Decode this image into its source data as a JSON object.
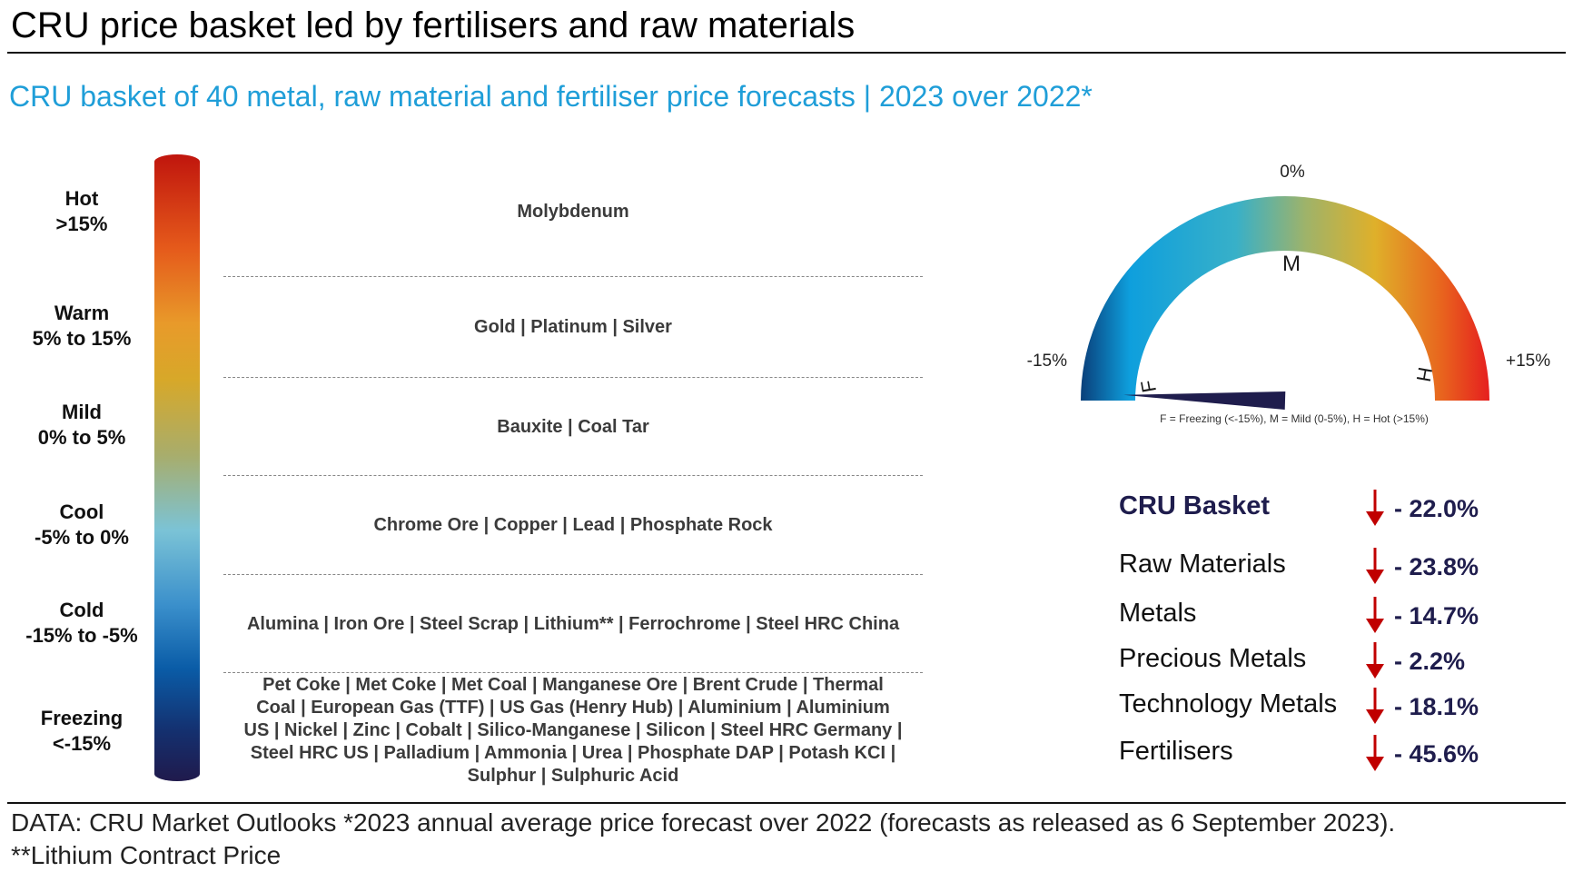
{
  "header": {
    "title": "CRU price basket led by fertilisers and raw materials",
    "subtitle": "CRU basket of 40 metal, raw material and fertiliser price forecasts | 2023 over 2022*"
  },
  "scale": {
    "bands": [
      {
        "name": "Hot",
        "range": ">15%"
      },
      {
        "name": "Warm",
        "range": "5% to 15%"
      },
      {
        "name": "Mild",
        "range": "0% to 5%"
      },
      {
        "name": "Cool",
        "range": "-5% to 0%"
      },
      {
        "name": "Cold",
        "range": "-15% to -5%"
      },
      {
        "name": "Freezing",
        "range": "<-15%"
      }
    ]
  },
  "commodities": {
    "hot": "Molybdenum",
    "warm": "Gold | Platinum | Silver",
    "mild": "Bauxite | Coal Tar",
    "cool": "Chrome Ore | Copper | Lead | Phosphate Rock",
    "cold": "Alumina | Iron Ore | Steel Scrap | Lithium** | Ferrochrome | Steel HRC China",
    "freezing_lines": [
      "Pet Coke | Met Coke | Met Coal | Manganese Ore | Brent Crude | Thermal",
      "Coal | European Gas (TTF) | US Gas (Henry Hub) | Aluminium | Aluminium",
      "US | Nickel | Zinc | Cobalt | Silico-Manganese | Silicon | Steel HRC Germany |",
      "Steel HRC US | Palladium | Ammonia | Urea | Phosphate DAP | Potash KCI |",
      "Sulphur | Sulphuric Acid"
    ]
  },
  "gauge": {
    "min_label": "-15%",
    "mid_label": "0%",
    "max_label": "+15%",
    "letter_f": "F",
    "letter_m": "M",
    "letter_h": "H",
    "legend": "F = Freezing (<-15%), M = Mild (0-5%), H = Hot (>15%)",
    "min_value": -15,
    "max_value": 15,
    "needle_value": -22.0
  },
  "chart_data": {
    "type": "table",
    "title": "CRU basket of 40 metal, raw material and fertiliser price forecasts | 2023 over 2022*",
    "rows": [
      {
        "name": "CRU Basket",
        "value_label": "- 22.0%",
        "value": -22.0,
        "direction": "down"
      },
      {
        "name": "Raw Materials",
        "value_label": "- 23.8%",
        "value": -23.8,
        "direction": "down"
      },
      {
        "name": "Metals",
        "value_label": "- 14.7%",
        "value": -14.7,
        "direction": "down"
      },
      {
        "name": "Precious Metals",
        "value_label": "- 2.2%",
        "value": -2.2,
        "direction": "down"
      },
      {
        "name": "Technology Metals",
        "value_label": "- 18.1%",
        "value": -18.1,
        "direction": "down"
      },
      {
        "name": "Fertilisers",
        "value_label": "- 45.6%",
        "value": -45.6,
        "direction": "down"
      }
    ]
  },
  "colors": {
    "accent": "#1f9ed8",
    "arrow": "#c00000",
    "needle": "#1f1d4d"
  },
  "footer": {
    "line1": "DATA: CRU Market Outlooks *2023 annual average price forecast over 2022 (forecasts as released as 6 September 2023).",
    "line2": "**Lithium Contract Price"
  }
}
